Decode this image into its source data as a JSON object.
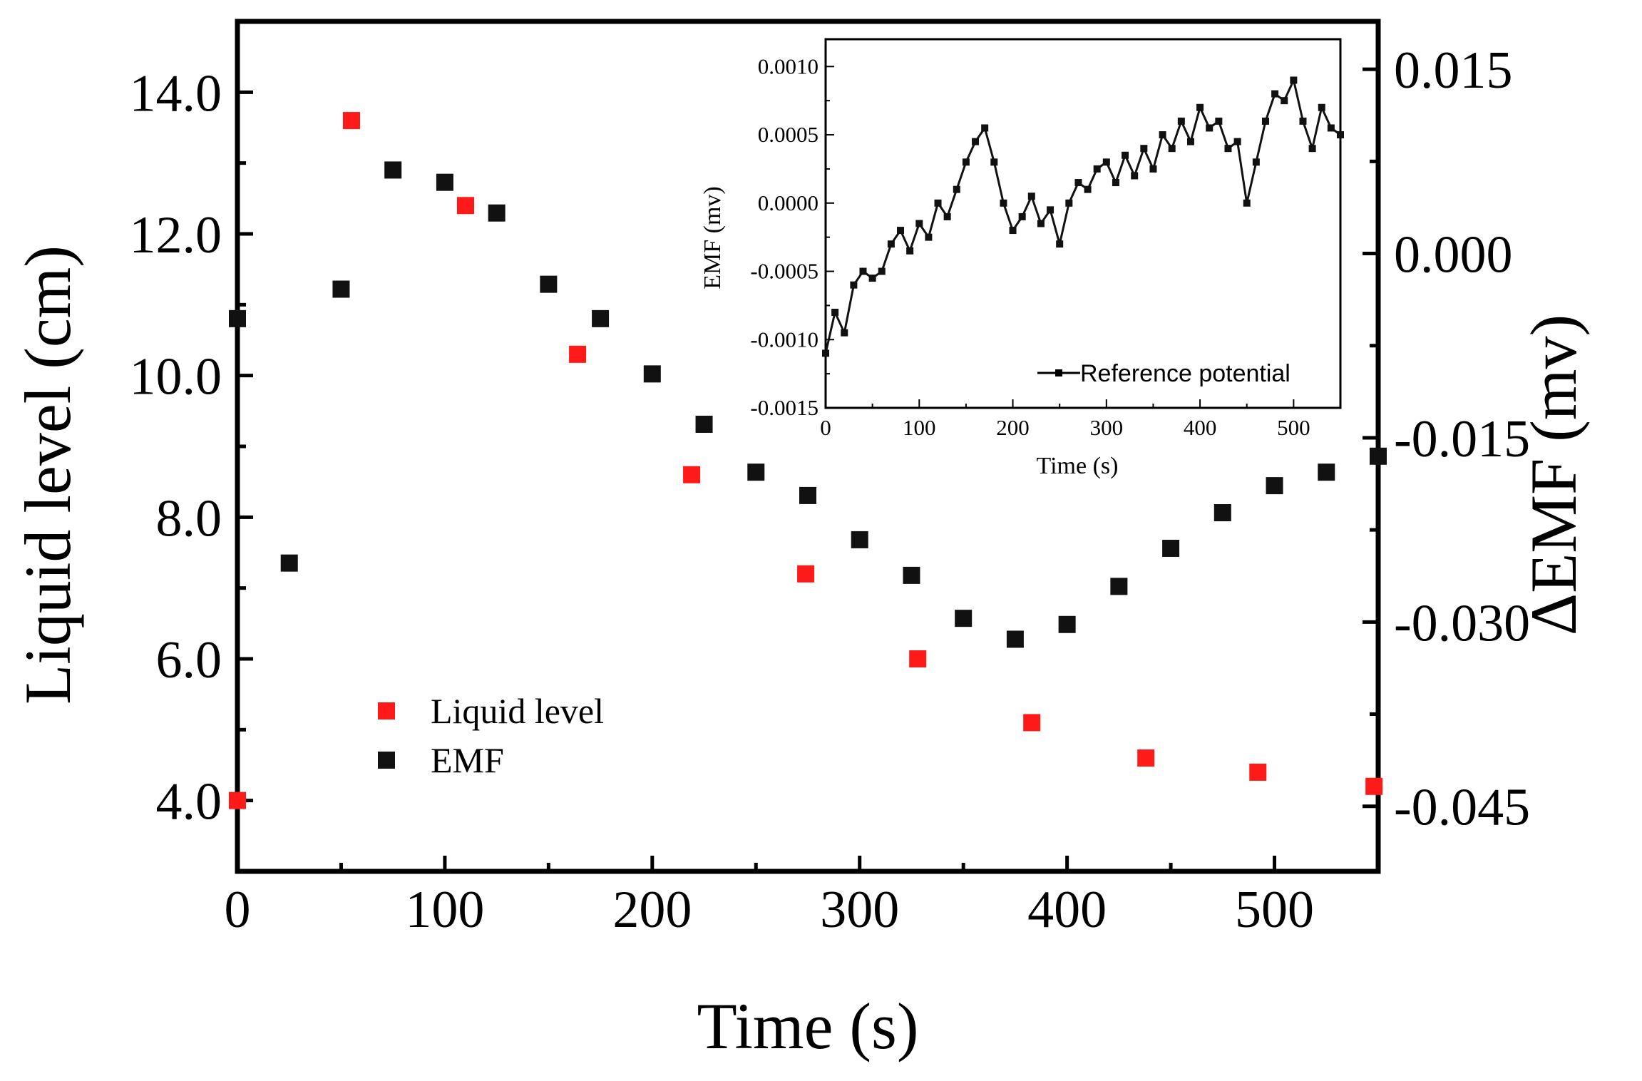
{
  "chart_data": [
    {
      "type": "scatter",
      "name": "main",
      "xlabel": "Time (s)",
      "ylabel": "Liquid level (cm)",
      "y2label": "ΔEMF (mv)",
      "xlim": [
        0,
        550
      ],
      "ylim": [
        3.0,
        15.0
      ],
      "y2lim": [
        -0.0503,
        0.0189
      ],
      "xticks": [
        0,
        100,
        200,
        300,
        400,
        500
      ],
      "yticks": [
        4.0,
        6.0,
        8.0,
        10.0,
        12.0,
        14.0
      ],
      "y2ticks": [
        -0.045,
        -0.03,
        -0.015,
        0.0,
        0.015
      ],
      "xtick_labels": [
        "0",
        "100",
        "200",
        "300",
        "400",
        "500"
      ],
      "ytick_labels": [
        "4.0",
        "6.0",
        "8.0",
        "10.0",
        "12.0",
        "14.0"
      ],
      "y2tick_labels": [
        "-0.045",
        "-0.030",
        "-0.015",
        "0.000",
        "0.015"
      ],
      "legend_position": "lower-left",
      "series": [
        {
          "name": "Liquid level",
          "axis": "left",
          "color": "#ff1a1a",
          "x": [
            0,
            55,
            110,
            164,
            219,
            274,
            328,
            383,
            438,
            492,
            548
          ],
          "y": [
            4.0,
            13.6,
            12.4,
            10.3,
            8.6,
            7.2,
            6.0,
            5.1,
            4.6,
            4.4,
            4.2
          ]
        },
        {
          "name": "EMF",
          "axis": "right",
          "color": "#111111",
          "x": [
            0,
            25,
            50,
            75,
            100,
            125,
            150,
            175,
            200,
            225,
            250,
            275,
            300,
            325,
            350,
            375,
            400,
            425,
            450,
            475,
            500,
            525,
            550
          ],
          "y": [
            -0.0053,
            -0.0252,
            -0.0029,
            0.0068,
            0.0058,
            0.0033,
            -0.0025,
            -0.0053,
            -0.0098,
            -0.0139,
            -0.0178,
            -0.0197,
            -0.0233,
            -0.0262,
            -0.0297,
            -0.0314,
            -0.0302,
            -0.0271,
            -0.024,
            -0.0211,
            -0.0189,
            -0.0178,
            -0.0165
          ]
        }
      ]
    },
    {
      "type": "line",
      "name": "inset",
      "xlabel": "Time (s)",
      "ylabel": "EMF (mv)",
      "xlim": [
        0,
        550
      ],
      "ylim": [
        -0.0015,
        0.0012
      ],
      "xticks": [
        0,
        100,
        200,
        300,
        400,
        500
      ],
      "yticks": [
        -0.0015,
        -0.001,
        -0.0005,
        0.0,
        0.0005,
        0.001
      ],
      "xtick_labels": [
        "0",
        "100",
        "200",
        "300",
        "400",
        "500"
      ],
      "ytick_labels": [
        "-0.0015",
        "-0.0010",
        "-0.0005",
        "0.0000",
        "0.0005",
        "0.0010"
      ],
      "legend_position": "lower-right",
      "series": [
        {
          "name": "Reference potential",
          "color": "#111111",
          "x": [
            0,
            10,
            20,
            30,
            40,
            50,
            60,
            70,
            80,
            90,
            100,
            110,
            120,
            130,
            140,
            150,
            160,
            170,
            180,
            190,
            200,
            210,
            220,
            230,
            240,
            250,
            260,
            270,
            280,
            290,
            300,
            310,
            320,
            330,
            340,
            350,
            360,
            370,
            380,
            390,
            400,
            410,
            420,
            430,
            440,
            450,
            460,
            470,
            480,
            490,
            500,
            510,
            520,
            530,
            540,
            550
          ],
          "y": [
            -0.0011,
            -0.0008,
            -0.00095,
            -0.0006,
            -0.0005,
            -0.00055,
            -0.0005,
            -0.0003,
            -0.0002,
            -0.00035,
            -0.00015,
            -0.00025,
            0.0,
            -0.0001,
            0.0001,
            0.0003,
            0.00045,
            0.00055,
            0.0003,
            0.0,
            -0.0002,
            -0.0001,
            5e-05,
            -0.00015,
            -5e-05,
            -0.0003,
            0.0,
            0.00015,
            0.0001,
            0.00025,
            0.0003,
            0.00015,
            0.00035,
            0.0002,
            0.0004,
            0.00025,
            0.0005,
            0.0004,
            0.0006,
            0.00045,
            0.0007,
            0.00055,
            0.0006,
            0.0004,
            0.00045,
            0.0,
            0.0003,
            0.0006,
            0.0008,
            0.00075,
            0.0009,
            0.0006,
            0.0004,
            0.0007,
            0.00055,
            0.0005
          ]
        }
      ]
    }
  ]
}
